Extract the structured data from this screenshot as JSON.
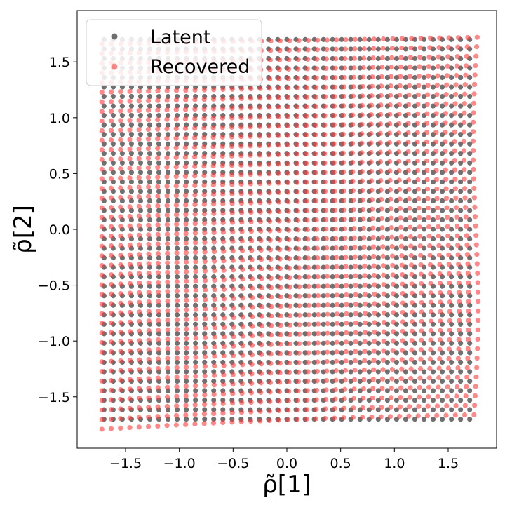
{
  "chart_data": {
    "type": "scatter",
    "xlabel": "ρ̃[1]",
    "ylabel": "ρ̃[2]",
    "xlim": [
      -1.95,
      1.95
    ],
    "ylim": [
      -1.96,
      1.96
    ],
    "x_ticks": [
      "−1.5",
      "−1.0",
      "−0.5",
      "0.0",
      "0.5",
      "1.0",
      "1.5"
    ],
    "x_tick_values": [
      -1.5,
      -1.0,
      -0.5,
      0.0,
      0.5,
      1.0,
      1.5
    ],
    "y_ticks": [
      "−1.5",
      "−1.0",
      "−0.5",
      "0.0",
      "0.5",
      "1.0",
      "1.5"
    ],
    "y_tick_values": [
      -1.5,
      -1.0,
      -0.5,
      0.0,
      0.5,
      1.0,
      1.5
    ],
    "grid": false,
    "legend_position": "top-left",
    "grid_points_per_axis": 41,
    "series": [
      {
        "name": "Latent",
        "color": "#404040",
        "alpha": 0.75,
        "x_range": [
          -1.7,
          1.7
        ],
        "y_range": [
          -1.7,
          1.7
        ],
        "description": "regular square grid"
      },
      {
        "name": "Recovered",
        "color": "#ff3b3b",
        "alpha": 0.6,
        "corners": {
          "bottom_left": [
            -1.72,
            -1.79
          ],
          "bottom_right": [
            1.74,
            -1.66
          ],
          "top_left": [
            -1.72,
            1.66
          ],
          "top_right": [
            1.77,
            1.72
          ]
        },
        "description": "slightly warped grid"
      }
    ]
  }
}
